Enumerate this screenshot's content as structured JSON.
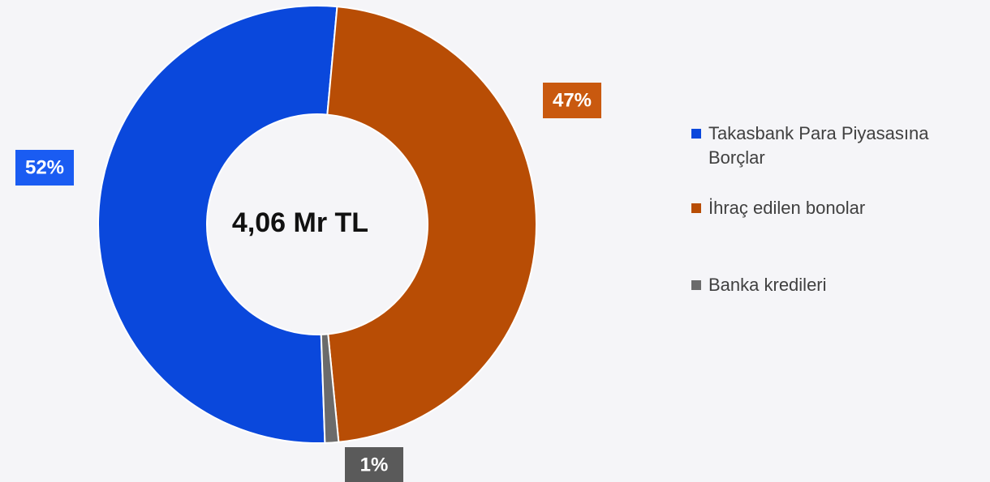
{
  "chart_data": {
    "type": "donut",
    "center_label": "4,06 Mr TL",
    "categories": [
      "Takasbank Para Piyasasına Borçlar",
      "İhraç edilen bonolar",
      "Banka kredileri"
    ],
    "values": [
      52,
      47,
      1
    ],
    "value_labels": [
      "52%",
      "47%",
      "1%"
    ],
    "colors": [
      "#0a48dc",
      "#b84d05",
      "#6b6b6b"
    ],
    "legend": "right"
  }
}
